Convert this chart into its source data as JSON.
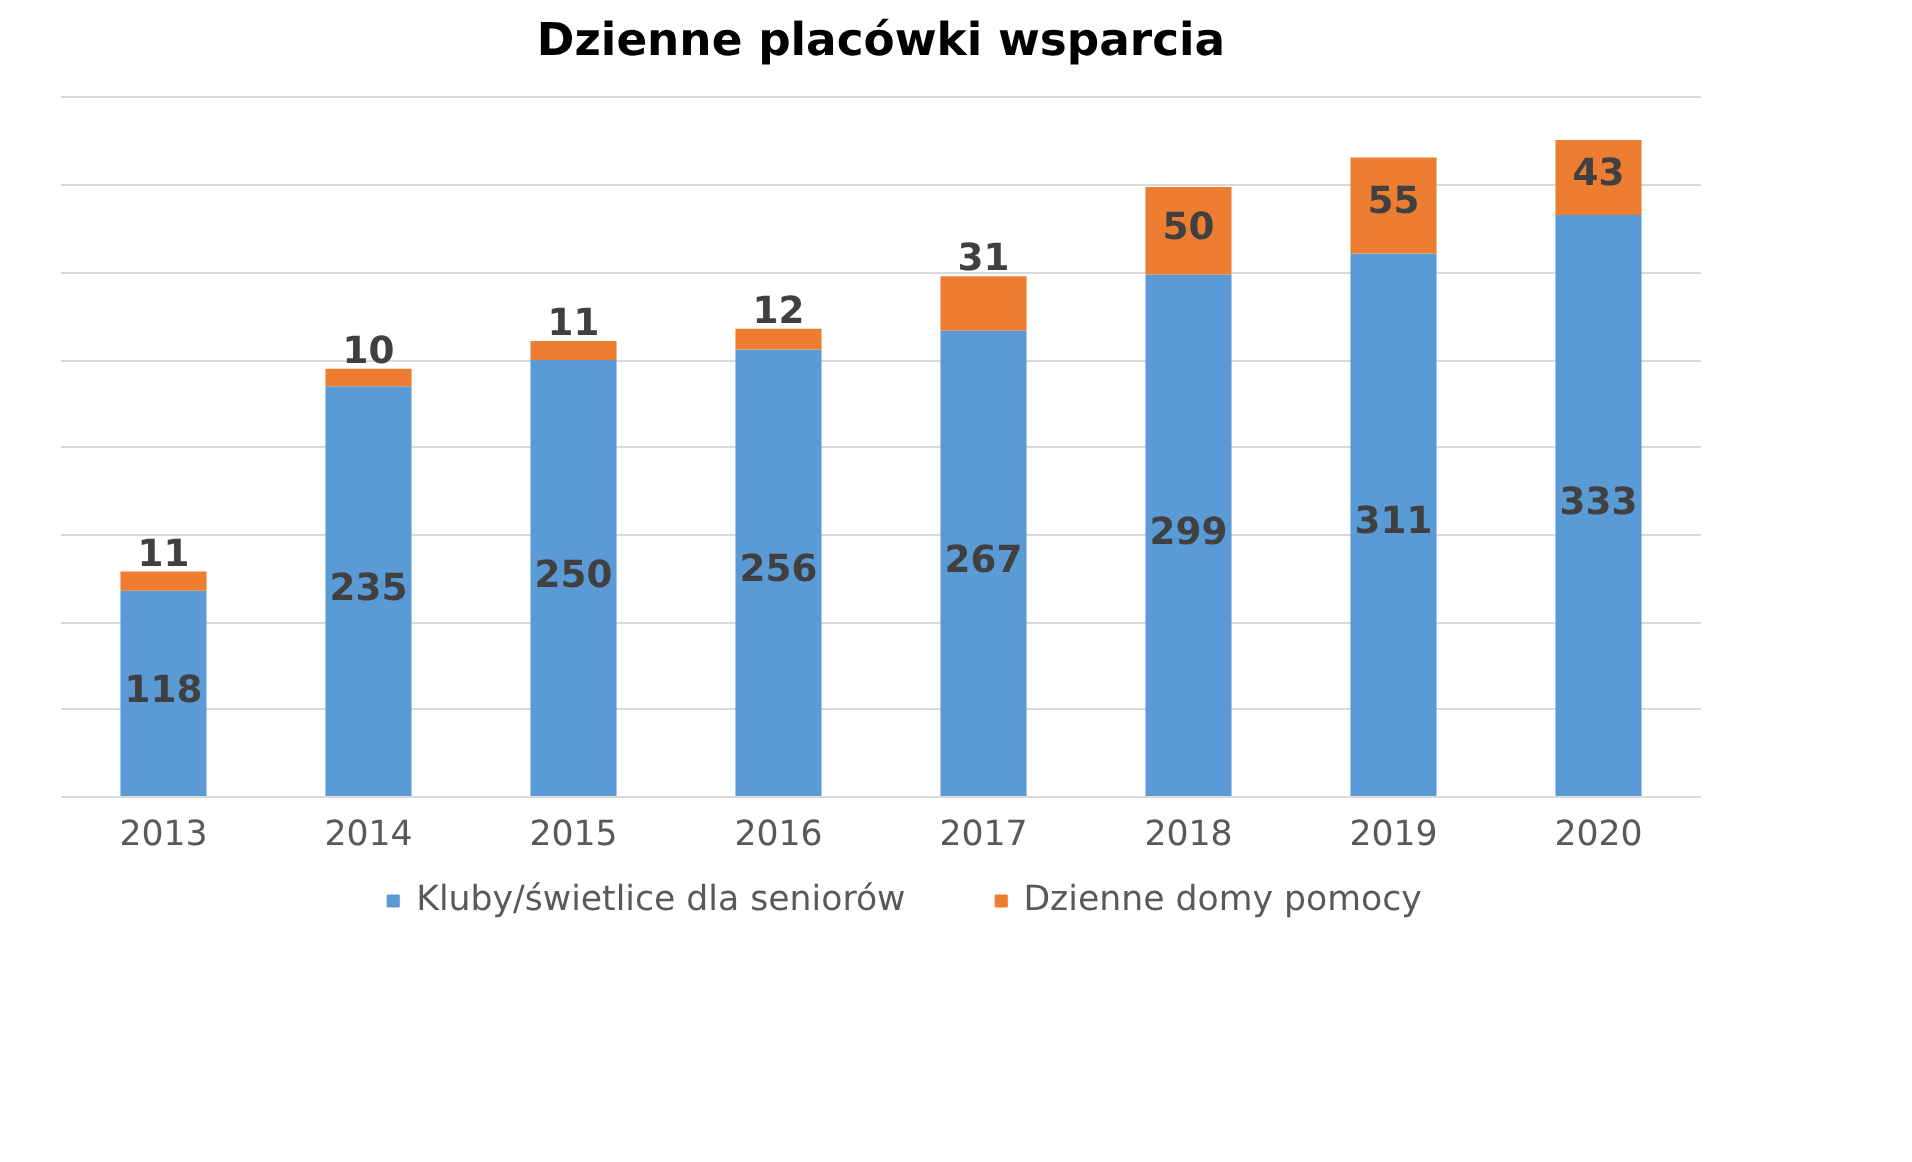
{
  "chart_data": {
    "type": "bar",
    "title": "Dzienne placówki wsparcia",
    "categories": [
      "2013",
      "2014",
      "2015",
      "2016",
      "2017",
      "2018",
      "2019",
      "2020"
    ],
    "series": [
      {
        "name": "Kluby/świetlice dla seniorów",
        "color": "#5b9bd5",
        "values": [
          118,
          235,
          250,
          256,
          267,
          299,
          311,
          333
        ]
      },
      {
        "name": "Dzienne domy pomocy",
        "color": "#ed7d31",
        "values": [
          11,
          10,
          11,
          12,
          31,
          50,
          55,
          43
        ]
      }
    ],
    "stacked": true,
    "yticks": [
      {
        "value": 0,
        "label": null
      },
      {
        "value": 50,
        "label": null
      },
      {
        "value": 100,
        "label": null
      },
      {
        "value": 150,
        "label": null
      },
      {
        "value": 200,
        "label": null
      },
      {
        "value": 250,
        "label": null
      },
      {
        "value": 300,
        "label": null
      },
      {
        "value": 350,
        "label": null
      },
      {
        "value": 400,
        "label": null
      }
    ],
    "grid": "y",
    "tick_labels": "x",
    "data_labels": true,
    "legend": "bottom"
  }
}
